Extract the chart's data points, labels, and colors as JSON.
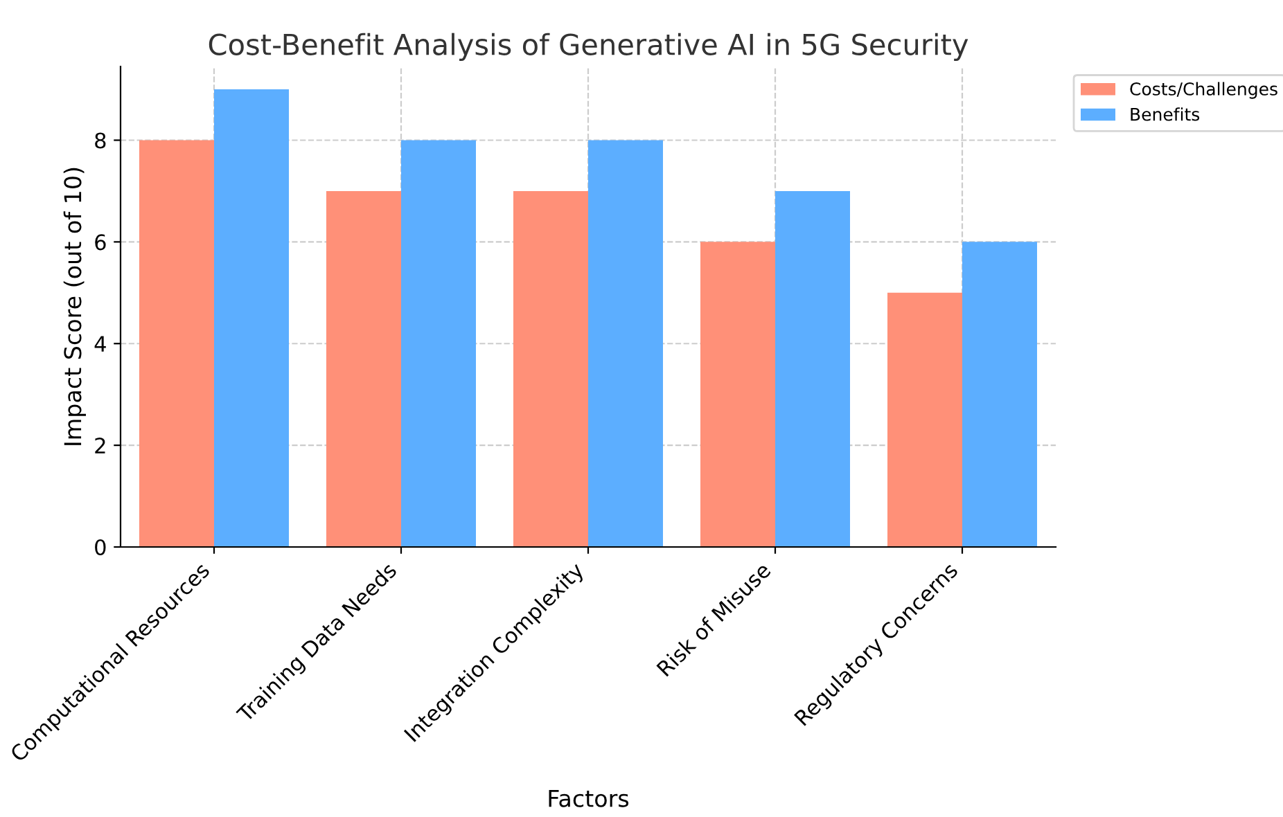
{
  "chart_data": {
    "type": "bar",
    "title": "Cost-Benefit Analysis of Generative AI in 5G Security",
    "xlabel": "Factors",
    "ylabel": "Impact Score (out of 10)",
    "categories": [
      "Computational Resources",
      "Training Data Needs",
      "Integration Complexity",
      "Risk of Misuse",
      "Regulatory Concerns"
    ],
    "series": [
      {
        "name": "Costs/Challenges",
        "color": "#ff9078",
        "values": [
          8,
          7,
          7,
          6,
          5
        ]
      },
      {
        "name": "Benefits",
        "color": "#5caeff",
        "values": [
          9,
          8,
          8,
          7,
          6
        ]
      }
    ],
    "ylim": [
      0,
      9.45
    ],
    "yticks": [
      0,
      2,
      4,
      6,
      8
    ],
    "grid": true,
    "legend": "top right"
  }
}
